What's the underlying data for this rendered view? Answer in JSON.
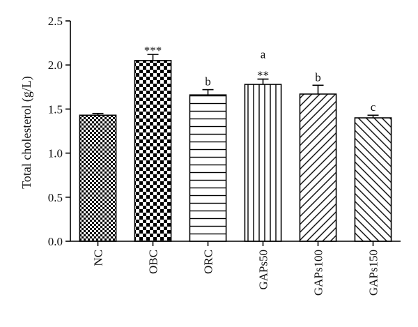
{
  "chart_data": {
    "type": "bar",
    "title": "",
    "xlabel": "",
    "ylabel": "Total cholesterol (g/L)",
    "ylim": [
      0,
      2.5
    ],
    "yticks": [
      "0.0",
      "0.5",
      "1.0",
      "1.5",
      "2.0",
      "2.5"
    ],
    "grid": false,
    "legend": "none",
    "categories": [
      "NC",
      "OBC",
      "ORC",
      "GAPs50",
      "GAPs100",
      "GAPs150"
    ],
    "values": [
      1.43,
      2.05,
      1.66,
      1.78,
      1.67,
      1.4
    ],
    "errors": [
      0.02,
      0.07,
      0.06,
      0.06,
      0.1,
      0.03
    ],
    "patterns": [
      "fine-checker",
      "coarse-checker",
      "horizontal-lines",
      "vertical-lines",
      "diagonal-lines-up",
      "diagonal-lines-down"
    ],
    "annotations": [
      {
        "category": "OBC",
        "lines": [
          "***"
        ]
      },
      {
        "category": "ORC",
        "lines": [
          "b"
        ]
      },
      {
        "category": "GAPs50",
        "lines": [
          "a",
          "**"
        ]
      },
      {
        "category": "GAPs100",
        "lines": [
          "b"
        ]
      },
      {
        "category": "GAPs150",
        "lines": [
          "c"
        ]
      }
    ],
    "colors": {
      "bar_stroke": "#000000",
      "bar_fill": "#ffffff",
      "axis": "#000000"
    }
  }
}
